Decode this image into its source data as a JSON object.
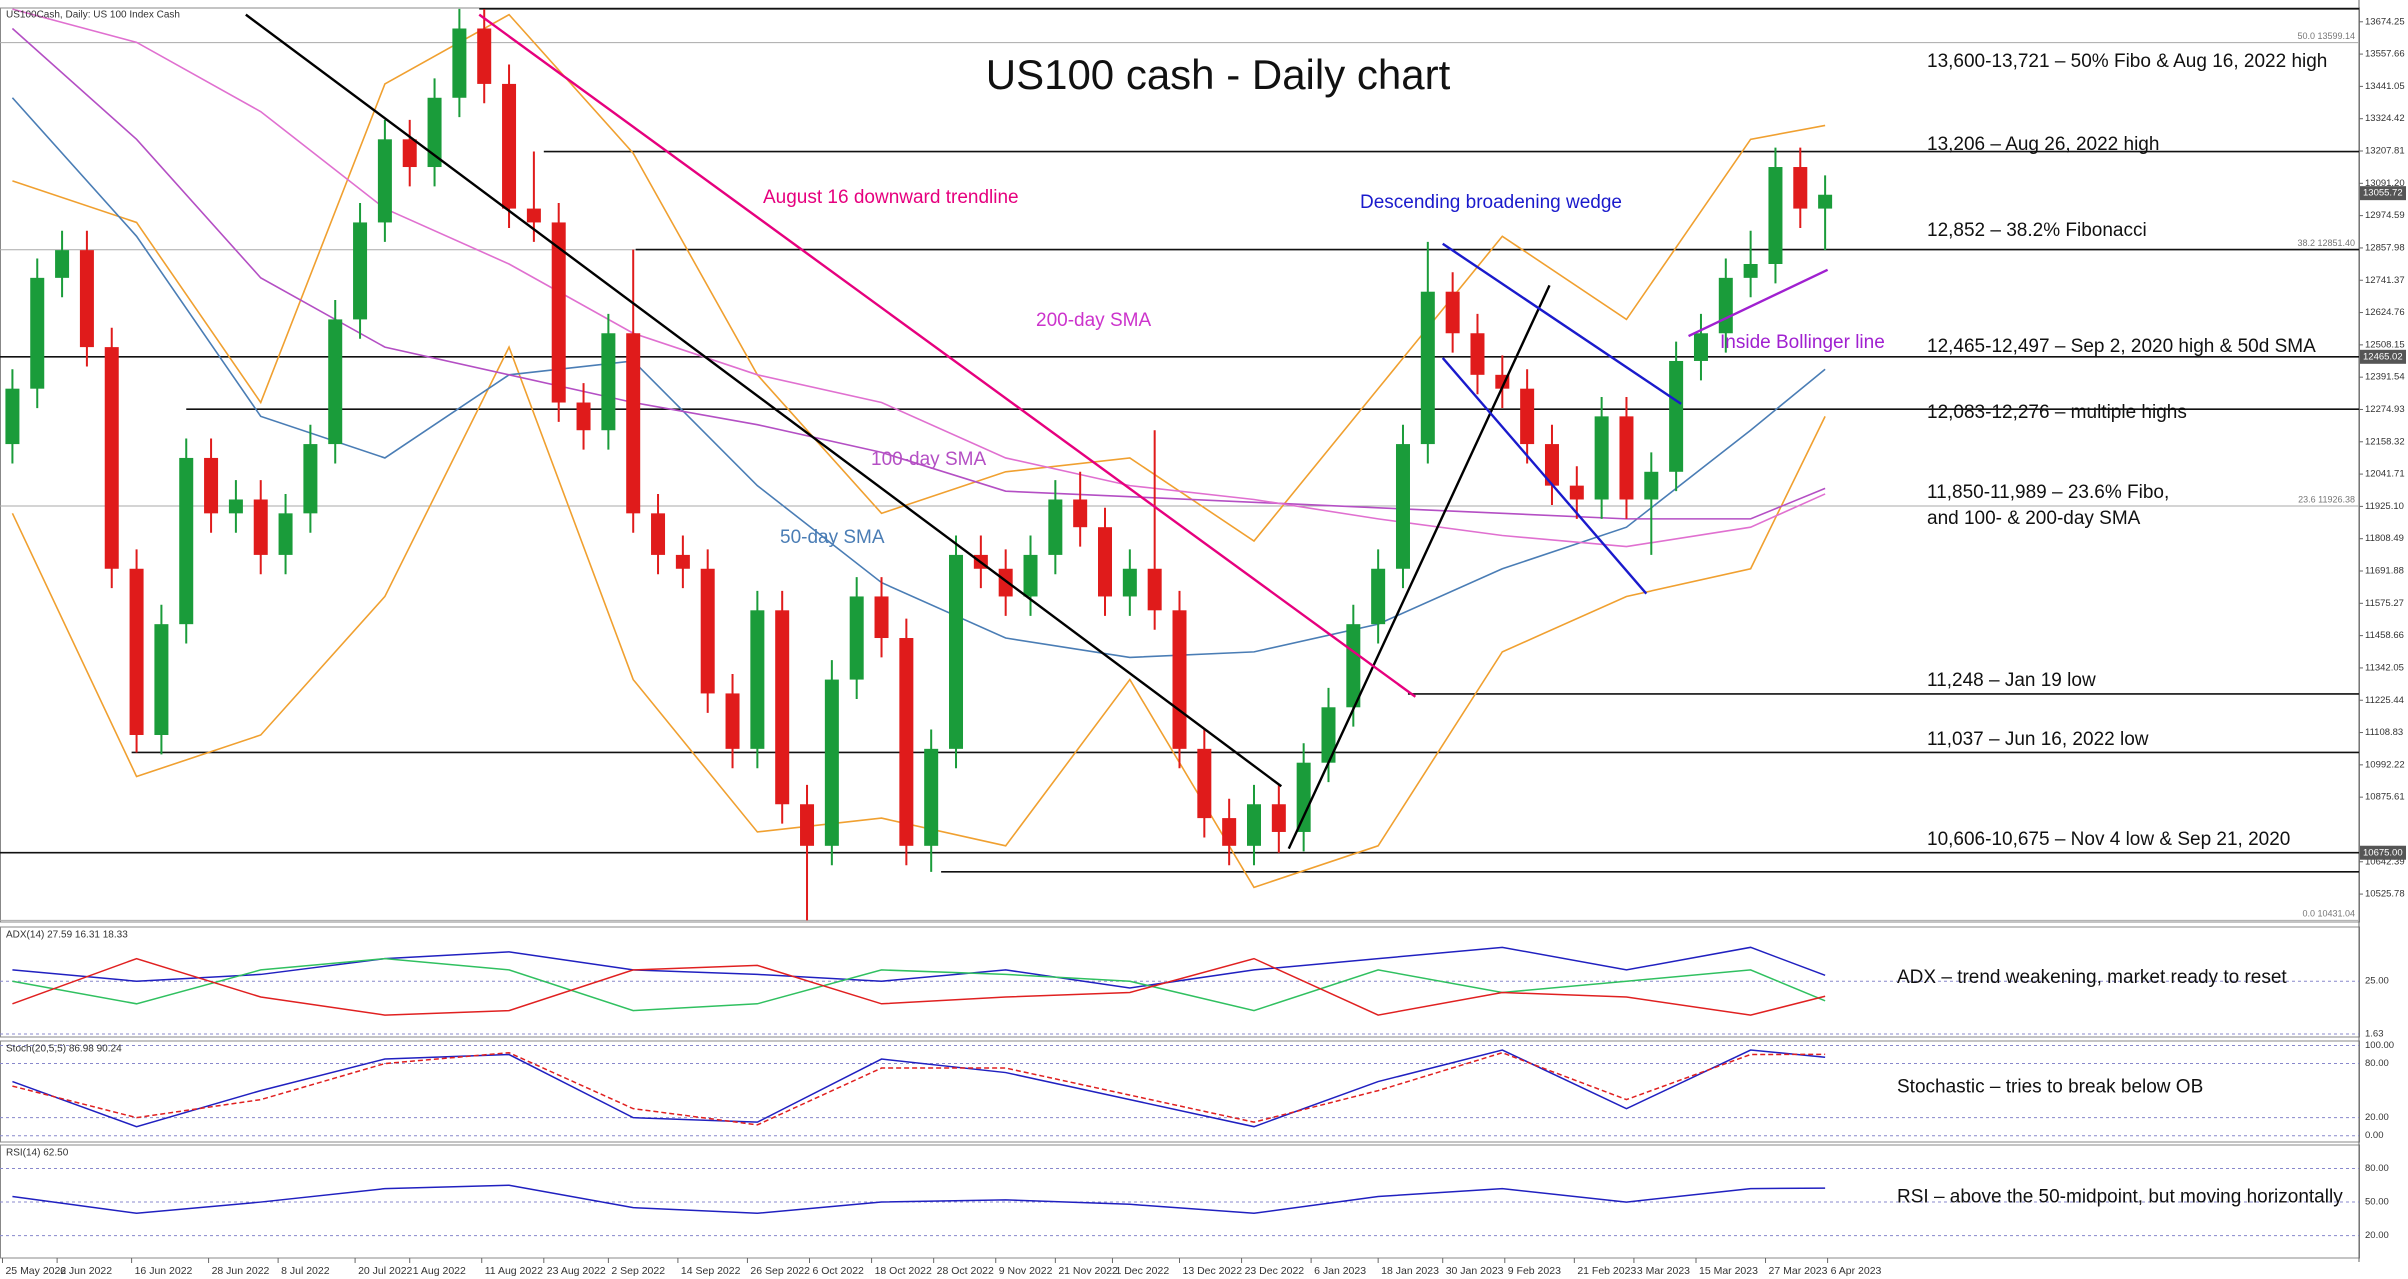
{
  "chart_data": [
    {
      "type": "candlestick",
      "title": "US100 cash - Daily chart",
      "source_label": "US100Cash, Daily:  US 100 Index Cash",
      "colors": {
        "up": "#1a9c3a",
        "down": "#e01b1b"
      },
      "xlim": [
        -0.5,
        94.5
      ],
      "ylim": [
        10425,
        13724
      ],
      "open": [
        12150,
        12350,
        12750,
        12850,
        12500,
        11700,
        11100,
        11500,
        12100,
        11900,
        11950,
        11750,
        11900,
        12150,
        12600,
        12950,
        13250,
        13150,
        13400,
        13650,
        13450,
        13000,
        12950,
        12300,
        12200,
        12550,
        11900,
        11750,
        11700,
        11250,
        11050,
        11550,
        10850,
        10700,
        11300,
        11600,
        11450,
        10700,
        11050,
        11750,
        11700,
        11600,
        11750,
        11950,
        11850,
        11600,
        11700,
        11550,
        11050,
        10800,
        10700,
        10850,
        10750,
        11000,
        11200,
        11500,
        11700,
        12150,
        12700,
        12550,
        12400,
        12350,
        12150,
        12000,
        11950,
        12250,
        11950,
        12050,
        12450,
        12550,
        12750,
        12800,
        13150,
        13000
      ],
      "high": [
        12420,
        12820,
        12920,
        12920,
        12570,
        11770,
        11570,
        12170,
        12170,
        12020,
        12020,
        11970,
        12220,
        12670,
        13020,
        13320,
        13320,
        13470,
        13721,
        13720,
        13520,
        13206,
        13020,
        12370,
        12620,
        12852,
        11970,
        11820,
        11770,
        11320,
        11620,
        11620,
        10920,
        11370,
        11670,
        11670,
        11520,
        11120,
        11820,
        11820,
        11770,
        11820,
        12020,
        12050,
        11920,
        11770,
        12200,
        11620,
        11120,
        10870,
        10920,
        10920,
        11070,
        11270,
        11570,
        11770,
        12220,
        12880,
        12770,
        12620,
        12470,
        12420,
        12220,
        12070,
        12320,
        12320,
        12120,
        12520,
        12620,
        12820,
        12920,
        13220,
        13220,
        13120
      ],
      "low": [
        12080,
        12280,
        12680,
        12430,
        11630,
        11037,
        11030,
        11430,
        11830,
        11830,
        11680,
        11680,
        11830,
        12080,
        12530,
        12880,
        13080,
        13080,
        13330,
        13380,
        12930,
        12880,
        12230,
        12130,
        12130,
        11830,
        11680,
        11630,
        11180,
        10980,
        10980,
        10780,
        10431,
        10630,
        11230,
        11380,
        10630,
        10606,
        10980,
        11630,
        11530,
        11530,
        11680,
        11780,
        11530,
        11530,
        11480,
        10980,
        10730,
        10630,
        10630,
        10675,
        10680,
        10930,
        11130,
        11430,
        11630,
        12080,
        12480,
        12330,
        12280,
        12080,
        11930,
        11880,
        11880,
        11880,
        11750,
        11980,
        12380,
        12480,
        12680,
        12730,
        12930,
        12850
      ],
      "close": [
        12350,
        12750,
        12850,
        12500,
        11700,
        11100,
        11500,
        12100,
        11900,
        11950,
        11750,
        11900,
        12150,
        12600,
        12950,
        13250,
        13150,
        13400,
        13650,
        13450,
        13000,
        12950,
        12300,
        12200,
        12550,
        11900,
        11750,
        11700,
        11250,
        11050,
        11550,
        10850,
        10700,
        11300,
        11600,
        11450,
        10700,
        11050,
        11750,
        11700,
        11600,
        11750,
        11950,
        11850,
        11600,
        11700,
        11550,
        11050,
        10800,
        10700,
        10850,
        10750,
        11000,
        11200,
        11500,
        11700,
        12150,
        12700,
        12550,
        12400,
        12350,
        12150,
        12000,
        11950,
        12250,
        11950,
        12050,
        12450,
        12550,
        12750,
        12800,
        13150,
        13000,
        13050
      ],
      "overlay_x": [
        0,
        5,
        10,
        15,
        20,
        25,
        30,
        35,
        40,
        45,
        50,
        55,
        60,
        65,
        70,
        73
      ],
      "overlays": [
        {
          "color": "#f0a030",
          "values": [
            13100,
            12950,
            12300,
            13450,
            13700,
            13200,
            12400,
            11900,
            12050,
            12100,
            11800,
            12350,
            12900,
            12600,
            13250,
            13300
          ]
        },
        {
          "color": "#f0a030",
          "values": [
            11900,
            10950,
            11100,
            11600,
            12500,
            11300,
            10750,
            10800,
            10700,
            11300,
            10550,
            10700,
            11400,
            11600,
            11700,
            12250
          ]
        },
        {
          "color": "#4a7db5",
          "values": [
            13400,
            12900,
            12250,
            12100,
            12400,
            12450,
            12000,
            11650,
            11450,
            11380,
            11400,
            11500,
            11700,
            11850,
            12200,
            12420
          ]
        },
        {
          "color": "#b44fc4",
          "values": [
            13650,
            13250,
            12750,
            12500,
            12400,
            12300,
            12220,
            12120,
            11980,
            11960,
            11940,
            11920,
            11900,
            11880,
            11880,
            11990
          ]
        },
        {
          "color": "#e070d0",
          "values": [
            13720,
            13600,
            13350,
            13000,
            12800,
            12550,
            12400,
            12300,
            12100,
            12000,
            11950,
            11880,
            11820,
            11780,
            11850,
            11970
          ]
        }
      ],
      "trendlines": [
        {
          "color": "#000000",
          "x0": 9.4,
          "y0": 13700,
          "x1": 51.1,
          "y1": 10915
        },
        {
          "color": "#000000",
          "x0": 51.4,
          "y0": 10690,
          "x1": 61.9,
          "y1": 12723
        },
        {
          "color": "#e6007e",
          "x0": 18.8,
          "y0": 13700,
          "x1": 56.5,
          "y1": 11238
        },
        {
          "color": "#1a1acc",
          "x0": 57.6,
          "y0": 12873,
          "x1": 67.2,
          "y1": 12295
        },
        {
          "color": "#1a1acc",
          "x0": 57.6,
          "y0": 12461,
          "x1": 65.8,
          "y1": 11610
        },
        {
          "color": "#a020d0",
          "x0": 67.5,
          "y0": 12540,
          "x1": 73.1,
          "y1": 12779
        }
      ],
      "levels": [
        {
          "value": 13721,
          "x0": 18.8
        },
        {
          "value": 13206,
          "x0": 21.4
        },
        {
          "value": 12852,
          "x0": 25.1
        },
        {
          "value": 12465,
          "x0": -0.5
        },
        {
          "value": 12276,
          "x0": 7
        },
        {
          "value": 11248,
          "x0": 56.2
        },
        {
          "value": 11037,
          "x0": 4.8
        },
        {
          "value": 10675,
          "x0": -0.5
        },
        {
          "value": 10606,
          "x0": 37.4
        }
      ],
      "fibo": [
        {
          "value": 13599.14,
          "label": "50.0 13599.14"
        },
        {
          "value": 12851.4,
          "label": "38.2 12851.40"
        },
        {
          "value": 11926.38,
          "label": "23.6 11926.38"
        },
        {
          "value": 10431.04,
          "label": "0.0 10431.04"
        }
      ],
      "price_tags": [
        13055.72,
        12465.02,
        {
          "value": 10675,
          "label": "10675.00"
        }
      ],
      "annotations": [
        {
          "text": "August 16 downward trendline",
          "color": "#e6007e"
        },
        {
          "text": "Descending broadening wedge",
          "color": "#1a1acc"
        },
        {
          "text": "200-day SMA",
          "color": "#cc33cc"
        },
        {
          "text": "100-day SMA",
          "color": "#b44fc4"
        },
        {
          "text": "50-day SMA",
          "color": "#4a7db5"
        },
        {
          "text": "Inside Bollinger line",
          "color": "#a020d0"
        }
      ],
      "notes": [
        "13,600-13,721 – 50% Fibo & Aug 16, 2022 high",
        "13,206 – Aug 26, 2022 high",
        "12,852 – 38.2% Fibonacci",
        "12,465-12,497 – Sep 2, 2020 high & 50d SMA",
        "12,083-12,276 – multiple highs",
        "11,850-11,989 – 23.6% Fibo,",
        "and 100- & 200-day SMA",
        "11,248 – Jan 19 low",
        "11,037 – Jun 16, 2022 low",
        "10,606-10,675 – Nov 4 low & Sep 21, 2020"
      ],
      "yticks": [
        13674.25,
        13557.66,
        13441.05,
        13324.42,
        13207.81,
        {
          "value": 13091.2,
          "label": "13091.20"
        },
        12974.59,
        12857.98,
        12741.37,
        12624.76,
        12508.15,
        12391.54,
        12274.93,
        12158.32,
        12041.71,
        {
          "value": 11925.1,
          "label": "11925.10"
        },
        11808.49,
        11691.88,
        11575.27,
        11458.66,
        11342.05,
        11225.44,
        11108.83,
        10992.22,
        10875.61,
        10642.39,
        10525.78
      ],
      "xticks": [
        {
          "value": -0.4,
          "label": "25 May 2022"
        },
        {
          "value": 1.8,
          "label": "6 Jun 2022"
        },
        {
          "value": 4.8,
          "label": "16 Jun 2022"
        },
        {
          "value": 7.9,
          "label": "28 Jun 2022"
        },
        {
          "value": 10.7,
          "label": "8 Jul 2022"
        },
        {
          "value": 13.8,
          "label": "20 Jul 2022"
        },
        {
          "value": 16,
          "label": "1 Aug 2022"
        },
        {
          "value": 18.9,
          "label": "11 Aug 2022"
        },
        {
          "value": 21.4,
          "label": "23 Aug 2022"
        },
        {
          "value": 24,
          "label": "2 Sep 2022"
        },
        {
          "value": 26.8,
          "label": "14 Sep 2022"
        },
        {
          "value": 29.6,
          "label": "26 Sep 2022"
        },
        {
          "value": 32.1,
          "label": "6 Oct 2022"
        },
        {
          "value": 34.6,
          "label": "18 Oct 2022"
        },
        {
          "value": 37.1,
          "label": "28 Oct 2022"
        },
        {
          "value": 39.6,
          "label": "9 Nov 2022"
        },
        {
          "value": 42,
          "label": "21 Nov 2022"
        },
        {
          "value": 44.3,
          "label": "1 Dec 2022"
        },
        {
          "value": 47,
          "label": "13 Dec 2022"
        },
        {
          "value": 49.5,
          "label": "23 Dec 2022"
        },
        {
          "value": 52.3,
          "label": "6 Jan 2023"
        },
        {
          "value": 55,
          "label": "18 Jan 2023"
        },
        {
          "value": 57.6,
          "label": "30 Jan 2023"
        },
        {
          "value": 60.1,
          "label": "9 Feb 2023"
        },
        {
          "value": 62.9,
          "label": "21 Feb 2023"
        },
        {
          "value": 65.3,
          "label": "3 Mar 2023"
        },
        {
          "value": 67.8,
          "label": "15 Mar 2023"
        },
        {
          "value": 70.6,
          "label": "27 Mar 2023"
        },
        {
          "value": 73.1,
          "label": "6 Apr 2023"
        }
      ]
    },
    {
      "type": "line",
      "header": "ADX(14) 27.59 16.31 18.33",
      "note": "ADX – trend weakening, market ready to reset",
      "ylim": [
        0.3,
        49
      ],
      "yticks": [
        {
          "value": 25,
          "label": "25.00"
        },
        1.63
      ],
      "x": [
        0,
        5,
        10,
        15,
        20,
        25,
        30,
        35,
        40,
        45,
        50,
        55,
        60,
        65,
        70,
        73
      ],
      "series": [
        {
          "color": "#2020c0",
          "values": [
            30,
            25,
            28,
            35,
            38,
            30,
            28,
            25,
            30,
            22,
            30,
            35,
            40,
            30,
            40,
            27.59
          ]
        },
        {
          "color": "#30c060",
          "values": [
            25,
            15,
            30,
            35,
            30,
            12,
            15,
            30,
            28,
            25,
            12,
            30,
            20,
            25,
            30,
            16.31
          ]
        },
        {
          "color": "#e02020",
          "values": [
            15,
            35,
            18,
            10,
            12,
            30,
            32,
            15,
            18,
            20,
            35,
            10,
            20,
            18,
            10,
            18.33
          ]
        }
      ]
    },
    {
      "type": "line",
      "header": "Stoch(20,5,5) 86.98 90.24",
      "note": "Stochastic – tries to break below OB",
      "ylim": [
        -7,
        105
      ],
      "yticks": [
        {
          "value": 100,
          "label": "100.00"
        },
        {
          "value": 80,
          "label": "80.00"
        },
        {
          "value": 20,
          "label": "20.00"
        },
        {
          "value": 0,
          "label": "0.00"
        }
      ],
      "x": [
        0,
        5,
        10,
        15,
        20,
        25,
        30,
        35,
        40,
        45,
        50,
        55,
        60,
        65,
        70,
        73
      ],
      "series": [
        {
          "color": "#2020c0",
          "values": [
            60,
            10,
            50,
            85,
            90,
            20,
            15,
            85,
            70,
            40,
            10,
            60,
            95,
            30,
            95,
            86.98
          ]
        },
        {
          "color": "#e02020",
          "style": "dashed",
          "values": [
            55,
            20,
            40,
            80,
            92,
            30,
            12,
            75,
            75,
            45,
            15,
            50,
            92,
            40,
            90,
            90.24
          ]
        }
      ]
    },
    {
      "type": "line",
      "header": "RSI(14) 62.50",
      "note": "RSI – above the 50-midpoint, but moving horizontally",
      "ylim": [
        0,
        101
      ],
      "yticks": [
        {
          "value": 80,
          "label": "80.00"
        },
        {
          "value": 50,
          "label": "50.00"
        },
        {
          "value": 20,
          "label": "20.00"
        }
      ],
      "x": [
        0,
        5,
        10,
        15,
        20,
        25,
        30,
        35,
        40,
        45,
        50,
        55,
        60,
        65,
        70,
        73
      ],
      "series": [
        {
          "color": "#2020c0",
          "values": [
            55,
            40,
            50,
            62,
            65,
            45,
            40,
            50,
            52,
            48,
            40,
            55,
            62,
            50,
            62,
            62.5
          ]
        }
      ]
    }
  ]
}
